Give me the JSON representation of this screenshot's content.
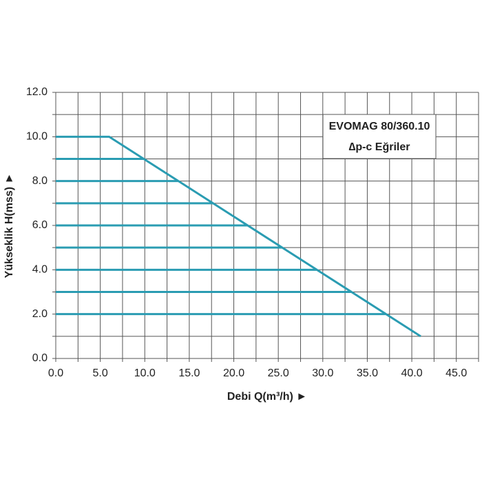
{
  "chart_data": {
    "type": "line",
    "annotation": [
      "EVOMAG 80/360.10",
      "∆p-c Eğriler"
    ],
    "x_label": "Debi Q(m³/h) ►",
    "y_label": "Yükseklik H(mss) ►",
    "xlim": [
      0,
      47.5
    ],
    "ylim": [
      0,
      12
    ],
    "xticks": [
      {
        "value": 0,
        "label": "0.0"
      },
      {
        "value": 5,
        "label": "5.0"
      },
      {
        "value": 10,
        "label": "10.0"
      },
      {
        "value": 15,
        "label": "15.0"
      },
      {
        "value": 20,
        "label": "20.0"
      },
      {
        "value": 25,
        "label": "25.0"
      },
      {
        "value": 30,
        "label": "30.0"
      },
      {
        "value": 35,
        "label": "35.0"
      },
      {
        "value": 40,
        "label": "40.0"
      },
      {
        "value": 45,
        "label": "45.0"
      }
    ],
    "yticks": [
      {
        "value": 0,
        "label": "0.0"
      },
      {
        "value": 2,
        "label": "2.0"
      },
      {
        "value": 4,
        "label": "4.0"
      },
      {
        "value": 6,
        "label": "6.0"
      },
      {
        "value": 8,
        "label": "8.0"
      },
      {
        "value": 10,
        "label": "10.0"
      },
      {
        "value": 12,
        "label": "12.0"
      }
    ],
    "grid": true,
    "minor_grid": true,
    "series": [
      {
        "color": "#2a9cb2",
        "x": [
          0,
          6,
          41
        ],
        "values": [
          10,
          10,
          1
        ]
      },
      {
        "color": "#2a9cb2",
        "x": [
          0,
          9.9
        ],
        "values": [
          9,
          9
        ]
      },
      {
        "color": "#2a9cb2",
        "x": [
          0,
          13.8
        ],
        "values": [
          8,
          8
        ]
      },
      {
        "color": "#2a9cb2",
        "x": [
          0,
          17.7
        ],
        "values": [
          7,
          7
        ]
      },
      {
        "color": "#2a9cb2",
        "x": [
          0,
          21.6
        ],
        "values": [
          6,
          6
        ]
      },
      {
        "color": "#2a9cb2",
        "x": [
          0,
          25.4
        ],
        "values": [
          5,
          5
        ]
      },
      {
        "color": "#2a9cb2",
        "x": [
          0,
          29.3
        ],
        "values": [
          4,
          4
        ]
      },
      {
        "color": "#2a9cb2",
        "x": [
          0,
          33.2
        ],
        "values": [
          3,
          3
        ]
      },
      {
        "color": "#2a9cb2",
        "x": [
          0,
          37.1
        ],
        "values": [
          2,
          2
        ]
      }
    ]
  }
}
